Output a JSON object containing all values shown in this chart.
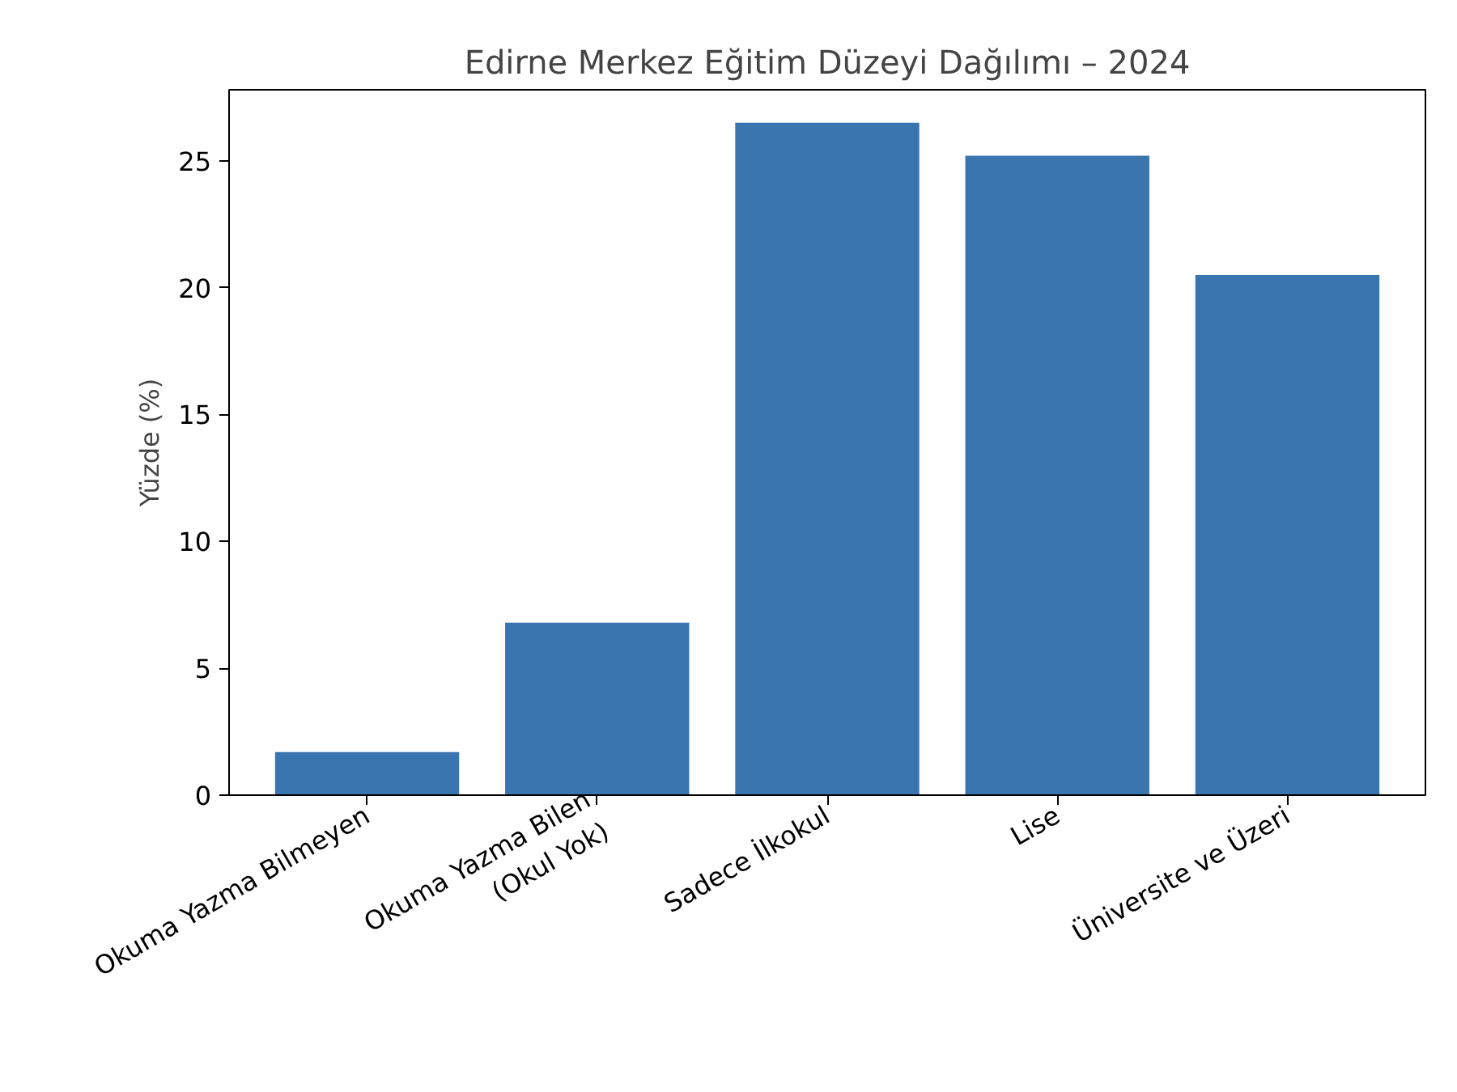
{
  "chart_data": {
    "type": "bar",
    "title": "Edirne Merkez Eğitim Düzeyi Dağılımı – 2024",
    "ylabel": "Yüzde (%)",
    "categories": [
      "Okuma Yazma Bilmeyen",
      "Okuma Yazma Bilen\n(Okul Yok)",
      "Sadece İlkokul",
      "Lise",
      "Üniversite ve Üzeri"
    ],
    "values": [
      1.7,
      6.8,
      26.5,
      25.2,
      20.5
    ],
    "color": "#3b75af",
    "ylim": [
      0,
      27.8
    ],
    "yticks": [
      0,
      5,
      10,
      15,
      20,
      25
    ],
    "grid": false
  }
}
